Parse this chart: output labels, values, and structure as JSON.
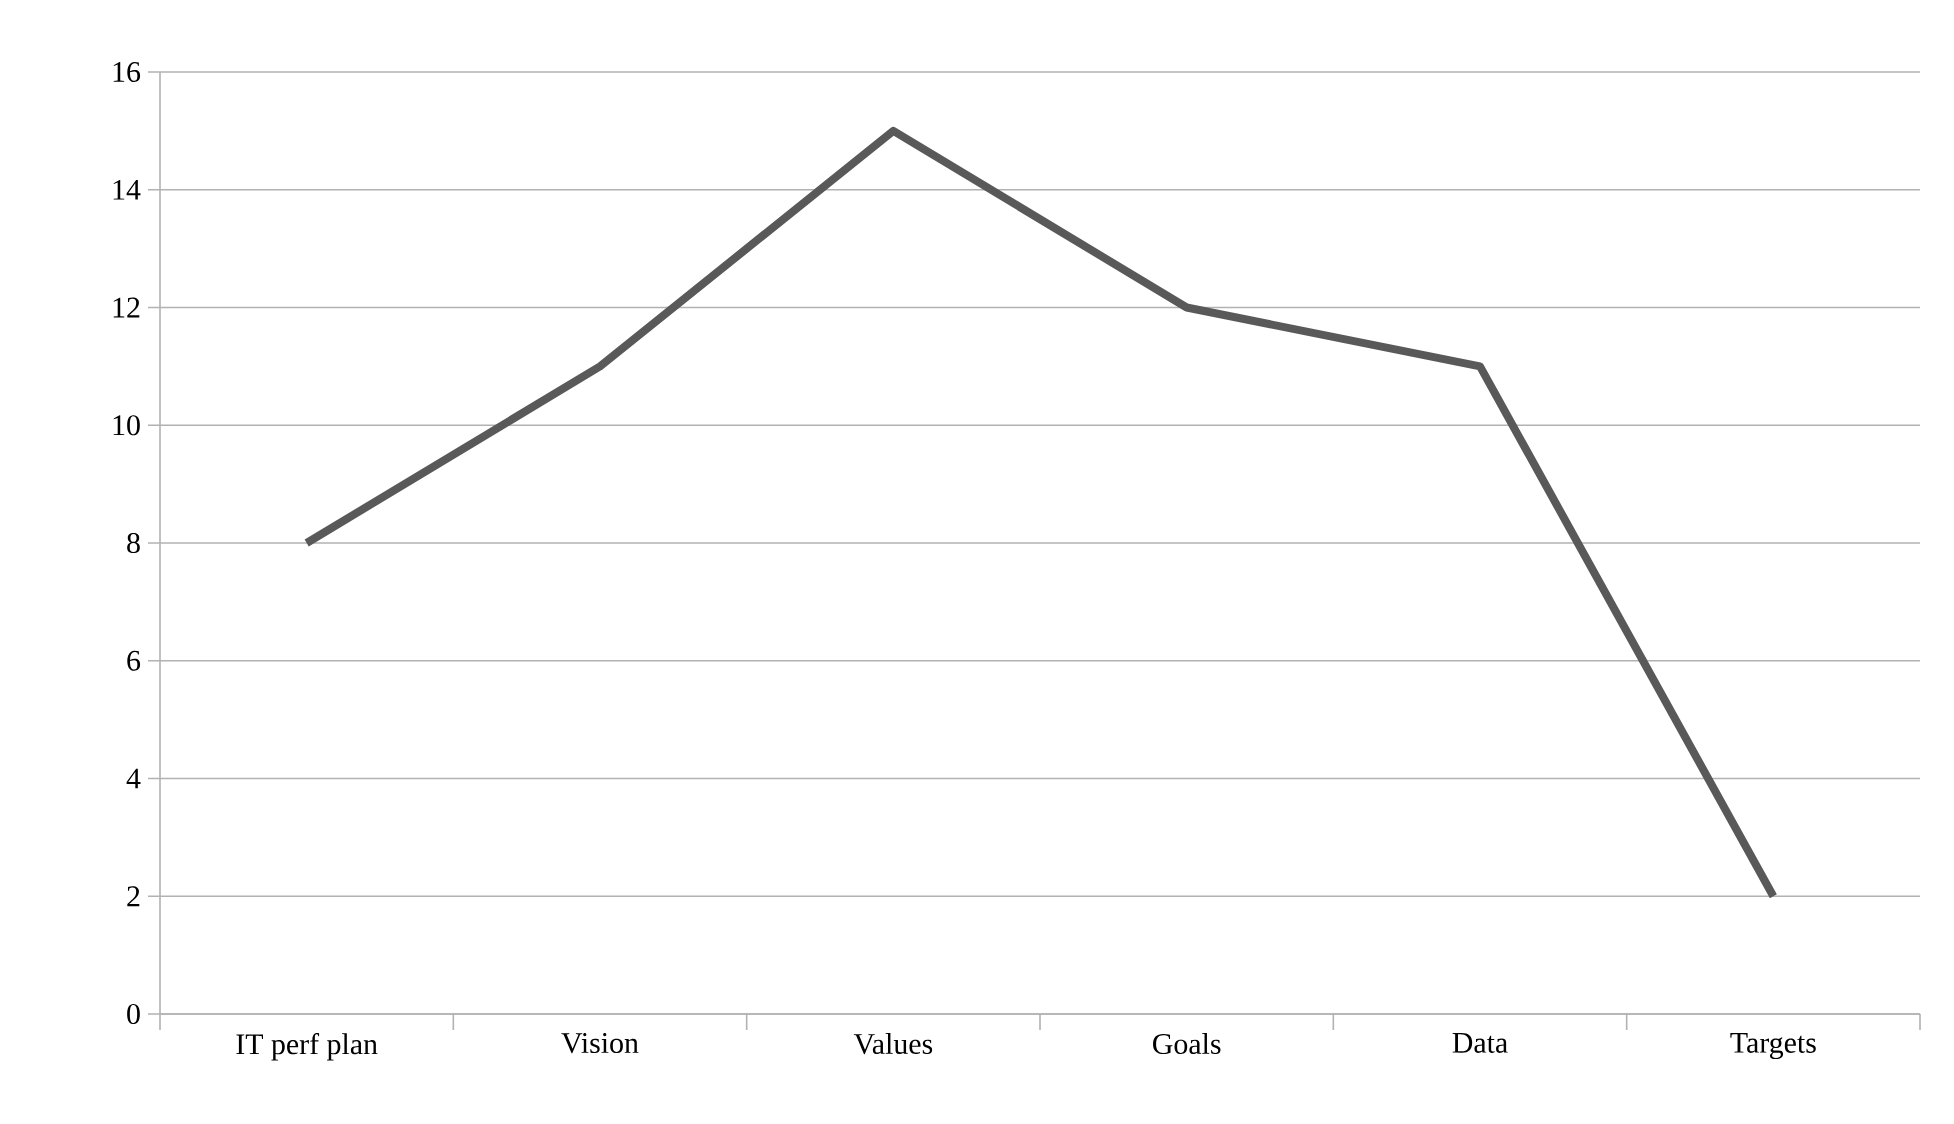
{
  "chart_data": {
    "type": "line",
    "categories": [
      "IT perf plan",
      "Vision",
      "Values",
      "Goals",
      "Data",
      "Targets"
    ],
    "series": [
      {
        "color": "#595959",
        "values": [
          8,
          11,
          15,
          12,
          11,
          2
        ]
      }
    ],
    "ylim": [
      0,
      16
    ],
    "yticks": [
      0,
      2,
      4,
      6,
      8,
      10,
      12,
      14,
      16
    ],
    "grid": "y",
    "marker": "none",
    "line_style": "solid"
  }
}
